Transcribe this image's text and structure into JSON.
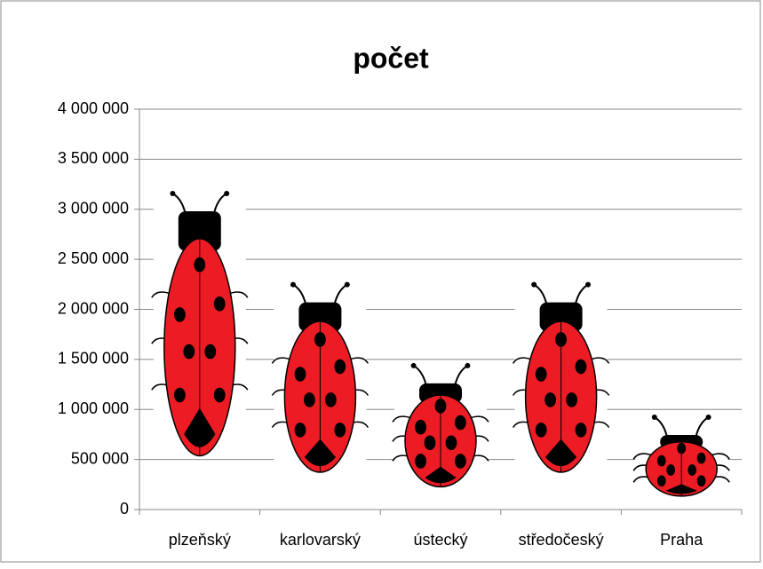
{
  "chart_data": {
    "type": "pictograph",
    "title": "počet",
    "categories": [
      "plzeňský",
      "karlovarský",
      "ústecký",
      "středočeský",
      "Praha"
    ],
    "values": [
      2980000,
      2070000,
      1260000,
      2070000,
      745000
    ],
    "color": "#ed1c24",
    "ylim": [
      0,
      4000000
    ],
    "yticks": [
      0,
      {
        "value": 500000,
        "label": "500 000"
      },
      {
        "value": 1000000,
        "label": "1 000 000"
      },
      {
        "value": 1500000,
        "label": "1 500 000"
      },
      {
        "value": 2000000,
        "label": "2 000 000"
      },
      {
        "value": 2500000,
        "label": "2 500 000"
      },
      {
        "value": 3000000,
        "label": "3 000 000"
      },
      {
        "value": 3500000,
        "label": "3 500 000"
      },
      {
        "value": 4000000,
        "label": "4 000 000"
      }
    ],
    "grid": true
  }
}
